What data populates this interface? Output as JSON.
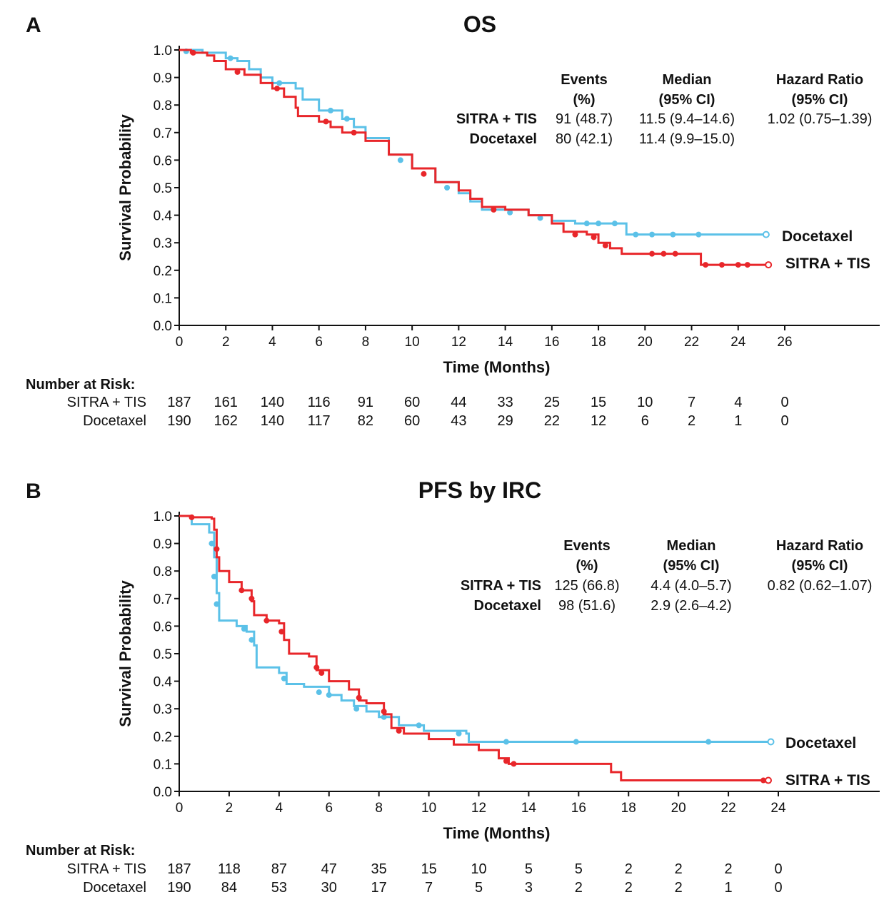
{
  "colors": {
    "sitra": "#e8262a",
    "docetaxel": "#5bc1e8",
    "axis": "#111111"
  },
  "chart_data": [
    {
      "type": "line",
      "panel_label": "A",
      "title": "OS",
      "xlabel": "Time (Months)",
      "ylabel": "Survival Probability",
      "xlim": [
        0,
        26
      ],
      "ylim": [
        0,
        1
      ],
      "xticks": [
        0,
        2,
        4,
        6,
        8,
        10,
        12,
        14,
        16,
        18,
        20,
        22,
        24,
        26
      ],
      "yticks": [
        "0.0",
        "0.1",
        "0.2",
        "0.3",
        "0.4",
        "0.5",
        "0.6",
        "0.7",
        "0.8",
        "0.9",
        "1.0"
      ],
      "stats": {
        "headers": [
          "Events\n(%)",
          "Median\n(95% CI)",
          "Hazard Ratio\n(95% CI)"
        ],
        "header_lines": [
          [
            "Events",
            "(%)"
          ],
          [
            "Median",
            "(95% CI)"
          ],
          [
            "Hazard Ratio",
            "(95% CI)"
          ]
        ],
        "rows": [
          {
            "label": "SITRA + TIS",
            "events": "91 (48.7)",
            "median": "11.5 (9.4–14.6)",
            "hr": "1.02 (0.75–1.39)"
          },
          {
            "label": "Docetaxel",
            "events": "80 (42.1)",
            "median": "11.4 (9.9–15.0)",
            "hr": ""
          }
        ]
      },
      "series": [
        {
          "name": "SITRA + TIS",
          "color": "#e8262a",
          "points": [
            [
              0,
              1
            ],
            [
              0.5,
              0.99
            ],
            [
              1.2,
              0.98
            ],
            [
              1.5,
              0.96
            ],
            [
              2,
              0.93
            ],
            [
              2.8,
              0.91
            ],
            [
              3.5,
              0.88
            ],
            [
              4,
              0.86
            ],
            [
              4.5,
              0.83
            ],
            [
              5,
              0.79
            ],
            [
              5.1,
              0.76
            ],
            [
              6,
              0.74
            ],
            [
              6.5,
              0.72
            ],
            [
              7,
              0.7
            ],
            [
              7.8,
              0.7
            ],
            [
              8,
              0.67
            ],
            [
              9,
              0.62
            ],
            [
              10,
              0.57
            ],
            [
              11,
              0.52
            ],
            [
              12,
              0.49
            ],
            [
              12.5,
              0.46
            ],
            [
              13,
              0.43
            ],
            [
              14,
              0.42
            ],
            [
              15,
              0.4
            ],
            [
              16,
              0.37
            ],
            [
              16.5,
              0.34
            ],
            [
              17.5,
              0.33
            ],
            [
              18,
              0.3
            ],
            [
              18.5,
              0.28
            ],
            [
              19,
              0.26
            ],
            [
              22.4,
              0.22
            ],
            [
              25.3,
              0.22
            ]
          ],
          "censored": [
            [
              0.6,
              0.99
            ],
            [
              2.5,
              0.92
            ],
            [
              4.2,
              0.86
            ],
            [
              6.3,
              0.74
            ],
            [
              7.5,
              0.7
            ],
            [
              10.5,
              0.55
            ],
            [
              13.5,
              0.42
            ],
            [
              17,
              0.33
            ],
            [
              17.8,
              0.32
            ],
            [
              18.3,
              0.29
            ],
            [
              20.3,
              0.26
            ],
            [
              20.8,
              0.26
            ],
            [
              21.3,
              0.26
            ],
            [
              22.6,
              0.22
            ],
            [
              23.3,
              0.22
            ],
            [
              24,
              0.22
            ],
            [
              24.4,
              0.22
            ]
          ]
        },
        {
          "name": "Docetaxel",
          "color": "#5bc1e8",
          "points": [
            [
              0,
              1
            ],
            [
              1,
              0.99
            ],
            [
              2,
              0.97
            ],
            [
              2.5,
              0.96
            ],
            [
              3,
              0.93
            ],
            [
              3.5,
              0.9
            ],
            [
              4,
              0.88
            ],
            [
              5,
              0.86
            ],
            [
              5.3,
              0.82
            ],
            [
              6,
              0.78
            ],
            [
              7,
              0.75
            ],
            [
              7.5,
              0.72
            ],
            [
              8,
              0.68
            ],
            [
              9,
              0.62
            ],
            [
              10,
              0.57
            ],
            [
              11,
              0.52
            ],
            [
              12,
              0.48
            ],
            [
              12.5,
              0.45
            ],
            [
              13,
              0.42
            ],
            [
              15,
              0.4
            ],
            [
              16,
              0.38
            ],
            [
              17,
              0.37
            ],
            [
              19.2,
              0.33
            ],
            [
              25.2,
              0.33
            ]
          ],
          "censored": [
            [
              0.3,
              0.995
            ],
            [
              2.2,
              0.97
            ],
            [
              4.3,
              0.88
            ],
            [
              6.5,
              0.78
            ],
            [
              7.2,
              0.75
            ],
            [
              9.5,
              0.6
            ],
            [
              11.5,
              0.5
            ],
            [
              14.2,
              0.41
            ],
            [
              15.5,
              0.39
            ],
            [
              17.5,
              0.37
            ],
            [
              18,
              0.37
            ],
            [
              18.7,
              0.37
            ],
            [
              19.6,
              0.33
            ],
            [
              20.3,
              0.33
            ],
            [
              21.2,
              0.33
            ],
            [
              22.3,
              0.33
            ]
          ]
        }
      ],
      "risk_table": {
        "title": "Number at Risk:",
        "rows": [
          {
            "label": "SITRA + TIS",
            "values": [
              "187",
              "161",
              "140",
              "116",
              "91",
              "60",
              "44",
              "33",
              "25",
              "15",
              "10",
              "7",
              "4",
              "0"
            ]
          },
          {
            "label": "Docetaxel",
            "values": [
              "190",
              "162",
              "140",
              "117",
              "82",
              "60",
              "43",
              "29",
              "22",
              "12",
              "6",
              "2",
              "1",
              "0"
            ]
          }
        ]
      }
    },
    {
      "type": "line",
      "panel_label": "B",
      "title": "PFS by IRC",
      "xlabel": "Time (Months)",
      "ylabel": "Survival Probability",
      "xlim": [
        0,
        24
      ],
      "ylim": [
        0,
        1
      ],
      "xticks": [
        0,
        2,
        4,
        6,
        8,
        10,
        12,
        14,
        16,
        18,
        20,
        22,
        24
      ],
      "yticks": [
        "0.0",
        "0.1",
        "0.2",
        "0.3",
        "0.4",
        "0.5",
        "0.6",
        "0.7",
        "0.8",
        "0.9",
        "1.0"
      ],
      "stats": {
        "header_lines": [
          [
            "Events",
            "(%)"
          ],
          [
            "Median",
            "(95% CI)"
          ],
          [
            "Hazard Ratio",
            "(95% CI)"
          ]
        ],
        "rows": [
          {
            "label": "SITRA + TIS",
            "events": "125 (66.8)",
            "median": "4.4 (4.0–5.7)",
            "hr": "0.82 (0.62–1.07)"
          },
          {
            "label": "Docetaxel",
            "events": "98 (51.6)",
            "median": "2.9 (2.6–4.2)",
            "hr": ""
          }
        ]
      },
      "series": [
        {
          "name": "SITRA + TIS",
          "color": "#e8262a",
          "points": [
            [
              0,
              1
            ],
            [
              0.5,
              0.995
            ],
            [
              1.3,
              0.99
            ],
            [
              1.4,
              0.95
            ],
            [
              1.5,
              0.85
            ],
            [
              1.6,
              0.8
            ],
            [
              2,
              0.76
            ],
            [
              2.5,
              0.73
            ],
            [
              2.9,
              0.69
            ],
            [
              3,
              0.64
            ],
            [
              3.5,
              0.62
            ],
            [
              4,
              0.61
            ],
            [
              4.2,
              0.55
            ],
            [
              4.4,
              0.5
            ],
            [
              5.2,
              0.49
            ],
            [
              5.5,
              0.44
            ],
            [
              6,
              0.4
            ],
            [
              6.8,
              0.37
            ],
            [
              7.2,
              0.33
            ],
            [
              7.5,
              0.32
            ],
            [
              8.2,
              0.28
            ],
            [
              8.5,
              0.23
            ],
            [
              9,
              0.21
            ],
            [
              10,
              0.19
            ],
            [
              11,
              0.17
            ],
            [
              12,
              0.15
            ],
            [
              12.8,
              0.12
            ],
            [
              13.2,
              0.1
            ],
            [
              17.3,
              0.07
            ],
            [
              17.7,
              0.04
            ],
            [
              23.6,
              0.04
            ]
          ],
          "censored": [
            [
              0.5,
              0.995
            ],
            [
              1.5,
              0.88
            ],
            [
              2.5,
              0.73
            ],
            [
              2.9,
              0.7
            ],
            [
              3.5,
              0.62
            ],
            [
              4.1,
              0.58
            ],
            [
              5.5,
              0.45
            ],
            [
              5.7,
              0.43
            ],
            [
              7.2,
              0.34
            ],
            [
              8.2,
              0.29
            ],
            [
              8.8,
              0.22
            ],
            [
              13.1,
              0.11
            ],
            [
              13.4,
              0.1
            ],
            [
              23.4,
              0.04
            ],
            [
              23.6,
              0.04
            ]
          ]
        },
        {
          "name": "Docetaxel",
          "color": "#5bc1e8",
          "points": [
            [
              0,
              1
            ],
            [
              0.5,
              0.97
            ],
            [
              1.2,
              0.94
            ],
            [
              1.4,
              0.85
            ],
            [
              1.5,
              0.72
            ],
            [
              1.6,
              0.62
            ],
            [
              2.3,
              0.6
            ],
            [
              2.7,
              0.58
            ],
            [
              3,
              0.53
            ],
            [
              3.1,
              0.45
            ],
            [
              4,
              0.43
            ],
            [
              4.3,
              0.39
            ],
            [
              5,
              0.38
            ],
            [
              6,
              0.35
            ],
            [
              6.5,
              0.33
            ],
            [
              7,
              0.31
            ],
            [
              7.5,
              0.29
            ],
            [
              8,
              0.27
            ],
            [
              8.8,
              0.24
            ],
            [
              9.8,
              0.22
            ],
            [
              11.5,
              0.21
            ],
            [
              11.6,
              0.18
            ],
            [
              23.7,
              0.18
            ]
          ],
          "censored": [
            [
              1.3,
              0.9
            ],
            [
              1.4,
              0.78
            ],
            [
              1.5,
              0.68
            ],
            [
              2.6,
              0.59
            ],
            [
              2.9,
              0.55
            ],
            [
              4.2,
              0.41
            ],
            [
              5.6,
              0.36
            ],
            [
              6,
              0.35
            ],
            [
              7.1,
              0.3
            ],
            [
              8.2,
              0.27
            ],
            [
              9.6,
              0.24
            ],
            [
              11.2,
              0.21
            ],
            [
              13.1,
              0.18
            ],
            [
              15.9,
              0.18
            ],
            [
              21.2,
              0.18
            ]
          ]
        }
      ],
      "risk_table": {
        "title": "Number at Risk:",
        "rows": [
          {
            "label": "SITRA + TIS",
            "values": [
              "187",
              "118",
              "87",
              "47",
              "35",
              "15",
              "10",
              "5",
              "5",
              "2",
              "2",
              "2",
              "0"
            ]
          },
          {
            "label": "Docetaxel",
            "values": [
              "190",
              "84",
              "53",
              "30",
              "17",
              "7",
              "5",
              "3",
              "2",
              "2",
              "2",
              "1",
              "0"
            ]
          }
        ]
      }
    }
  ]
}
